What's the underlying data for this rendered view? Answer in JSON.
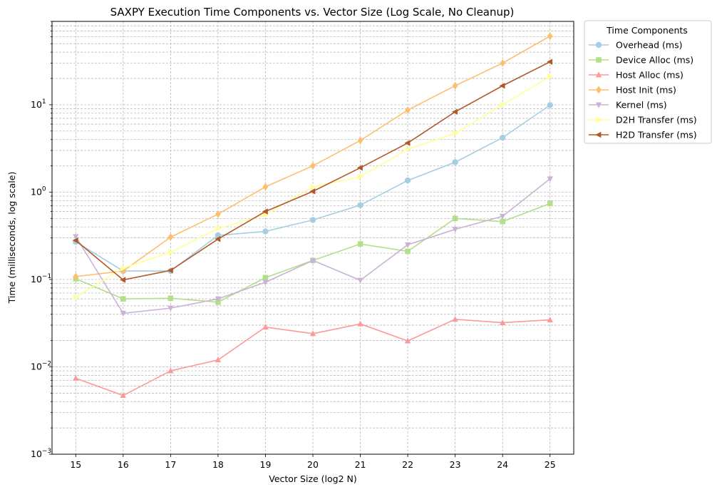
{
  "chart_data": {
    "type": "line",
    "title": "SAXPY Execution Time Components vs. Vector Size (Log Scale, No Cleanup)",
    "xlabel": "Vector Size (log2 N)",
    "ylabel": "Time (milliseconds, log scale)",
    "yscale": "log",
    "ylim": [
      0.001,
      90
    ],
    "xlim": [
      14.5,
      25.5
    ],
    "grid": true,
    "legend": {
      "title": "Time Components",
      "placement": "outside-top-right"
    },
    "x": [
      15,
      16,
      17,
      18,
      19,
      20,
      21,
      22,
      23,
      24,
      25
    ],
    "y_ticks": [
      {
        "value": 0.001,
        "base": "10",
        "exp": "−3"
      },
      {
        "value": 0.01,
        "base": "10",
        "exp": "−2"
      },
      {
        "value": 0.1,
        "base": "10",
        "exp": "−1"
      },
      {
        "value": 1,
        "base": "10",
        "exp": "0"
      },
      {
        "value": 10,
        "base": "10",
        "exp": "1"
      }
    ],
    "series": [
      {
        "name": "Overhead (ms)",
        "color": "#a6cee3",
        "marker": "circle",
        "values": [
          0.27,
          0.125,
          0.125,
          0.32,
          0.355,
          0.48,
          0.71,
          1.36,
          2.2,
          4.2,
          9.9
        ]
      },
      {
        "name": "Device Alloc (ms)",
        "color": "#b2df8a",
        "marker": "square",
        "values": [
          0.102,
          0.06,
          0.061,
          0.055,
          0.105,
          0.165,
          0.255,
          0.21,
          0.5,
          0.46,
          0.74
        ]
      },
      {
        "name": "Host Alloc (ms)",
        "color": "#fb9a99",
        "marker": "triangle-up",
        "values": [
          0.0074,
          0.0047,
          0.009,
          0.012,
          0.0285,
          0.024,
          0.031,
          0.0198,
          0.035,
          0.032,
          0.0345
        ]
      },
      {
        "name": "Host Init (ms)",
        "color": "#fdbf6f",
        "marker": "diamond",
        "values": [
          0.108,
          0.125,
          0.305,
          0.56,
          1.15,
          2.0,
          3.9,
          8.7,
          16.5,
          30.0,
          61.0
        ]
      },
      {
        "name": "Kernel (ms)",
        "color": "#cab2d6",
        "marker": "triangle-down",
        "values": [
          0.31,
          0.041,
          0.047,
          0.06,
          0.093,
          0.165,
          0.098,
          0.25,
          0.375,
          0.53,
          1.42
        ]
      },
      {
        "name": "D2H Transfer (ms)",
        "color": "#ffff99",
        "marker": "triangle-right",
        "values": [
          0.063,
          0.135,
          0.205,
          0.385,
          0.55,
          1.15,
          1.5,
          3.1,
          4.7,
          10.0,
          21.0
        ]
      },
      {
        "name": "H2D Transfer (ms)",
        "color": "#b15928",
        "marker": "triangle-left",
        "values": [
          0.28,
          0.099,
          0.127,
          0.29,
          0.6,
          1.02,
          1.9,
          3.65,
          8.3,
          16.5,
          31.0
        ]
      }
    ]
  }
}
